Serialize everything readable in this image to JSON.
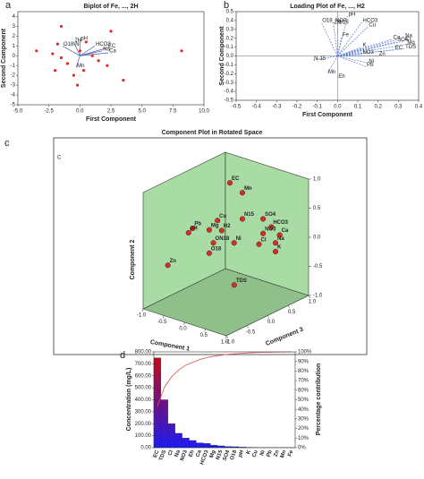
{
  "chart_data": [
    {
      "type": "biplot",
      "panel": "a",
      "title": "Biplot of Fe, ..., 2H",
      "xlabel": "First Component",
      "ylabel": "Second Component",
      "xlim": [
        -5,
        10
      ],
      "ylim": [
        -5,
        4.5
      ],
      "xticks": [
        {
          "value": -5,
          "label": "-5.0"
        },
        {
          "value": -2.5,
          "label": "-2.5"
        },
        {
          "value": 0,
          "label": "0.0"
        },
        {
          "value": 2.5,
          "label": "2.5"
        },
        {
          "value": 5,
          "label": "5.0"
        },
        {
          "value": 7.5,
          "label": "7.5"
        },
        {
          "value": 10,
          "label": "10.0"
        }
      ],
      "yticks": [
        -5,
        -4,
        -3,
        -2,
        -1,
        0,
        1,
        2,
        3,
        4
      ],
      "color": "#e8262a",
      "vector_color": "#4a5fb0",
      "x": [
        -3.5,
        -2.2,
        -1.8,
        -1.5,
        -1,
        -0.5,
        -0.2,
        0.3,
        0.5,
        1,
        1.5,
        2.2,
        2.5,
        3.5,
        8.2,
        -1.5,
        0,
        -2
      ],
      "y": [
        0.5,
        0.2,
        1.2,
        -0.2,
        -0.8,
        -2,
        -3,
        -1.5,
        1.4,
        0,
        -0.5,
        -1,
        2.5,
        -2.5,
        0.5,
        3,
        0.5,
        -1.5
      ],
      "vectors": [
        {
          "label": "EC",
          "x": 2.2,
          "y": 0.8
        },
        {
          "label": "Ca",
          "x": 2.3,
          "y": 0.3
        },
        {
          "label": "Na",
          "x": 1.8,
          "y": 0.5
        },
        {
          "label": "HCO3",
          "x": 1.2,
          "y": 1.0
        },
        {
          "label": "pH",
          "x": 0,
          "y": 1.6
        },
        {
          "label": "2H",
          "x": -0.5,
          "y": 1.4
        },
        {
          "label": "O18-N",
          "x": -1.4,
          "y": 1.0
        },
        {
          "label": "Mn",
          "x": -0.3,
          "y": -1.2
        }
      ]
    },
    {
      "type": "loading",
      "panel": "b",
      "title": "Loading Plot of Fe, ..., H2",
      "xlabel": "First Component",
      "ylabel": "Second Component",
      "xlim": [
        -0.5,
        0.4
      ],
      "ylim": [
        -0.5,
        0.5
      ],
      "xticks": [
        -0.5,
        -0.4,
        -0.3,
        -0.2,
        -0.1,
        {
          "value": 0,
          "label": "0.0"
        },
        0.1,
        0.2,
        0.3,
        0.4
      ],
      "yticks": [
        -0.5,
        -0.4,
        -0.3,
        -0.2,
        -0.1,
        {
          "value": 0,
          "label": "0.0"
        },
        0.1,
        0.2,
        0.3,
        0.4,
        0.5
      ],
      "vector_color": "#5b7fd6",
      "vectors": [
        {
          "label": "O18_NO3",
          "x": -0.08,
          "y": 0.38
        },
        {
          "label": "2H",
          "x": -0.02,
          "y": 0.36
        },
        {
          "label": "O18",
          "x": 0.0,
          "y": 0.36
        },
        {
          "label": "pH",
          "x": 0.05,
          "y": 0.45
        },
        {
          "label": "HCO3",
          "x": 0.12,
          "y": 0.38
        },
        {
          "label": "Cu",
          "x": 0.15,
          "y": 0.33
        },
        {
          "label": "Fe",
          "x": 0.02,
          "y": 0.22
        },
        {
          "label": "K",
          "x": 0.12,
          "y": 0.1
        },
        {
          "label": "Ca",
          "x": 0.27,
          "y": 0.19
        },
        {
          "label": "SO4",
          "x": 0.29,
          "y": 0.16
        },
        {
          "label": "Cl",
          "x": 0.33,
          "y": 0.17
        },
        {
          "label": "Na",
          "x": 0.33,
          "y": 0.21
        },
        {
          "label": "Mg",
          "x": 0.34,
          "y": 0.13
        },
        {
          "label": "EC",
          "x": 0.28,
          "y": 0.07
        },
        {
          "label": "TDS",
          "x": 0.33,
          "y": 0.08
        },
        {
          "label": "NO3",
          "x": 0.12,
          "y": 0.02
        },
        {
          "label": "Zn",
          "x": 0.2,
          "y": 0.0
        },
        {
          "label": "Ni",
          "x": 0.15,
          "y": -0.08
        },
        {
          "label": "Pb",
          "x": 0.14,
          "y": -0.12
        },
        {
          "label": "N-15",
          "x": -0.12,
          "y": -0.05
        },
        {
          "label": "Mn",
          "x": -0.05,
          "y": -0.2
        },
        {
          "label": "Eh",
          "x": 0.0,
          "y": -0.25
        }
      ]
    },
    {
      "type": "scatter3d",
      "panel": "c",
      "inset_label": "C",
      "title": "Component Plot in Rotated Space",
      "xlabel": "Component 1",
      "ylabel": "Component 2",
      "zlabel": "Component 3",
      "lim": [
        -1,
        1
      ],
      "ticks": [
        {
          "value": -1,
          "label": "-1.0"
        },
        {
          "value": -0.5,
          "label": "-0.5"
        },
        {
          "value": 0,
          "label": "0.0"
        },
        {
          "value": 0.5,
          "label": "0.5"
        },
        {
          "value": 1,
          "label": "1.0"
        }
      ],
      "color": "#d2312a",
      "wall_color": "#a9dca4",
      "floor_color": "#8fc08a",
      "labels": [
        "EC",
        "Mn",
        "N15",
        "SO4",
        "HCO3",
        "Ca",
        "NO3",
        "Cl",
        "Na",
        "K",
        "Cu",
        "Mg",
        "Pb",
        "H2",
        "ON18",
        "Ni",
        "pH",
        "O18",
        "Zn",
        "TDS"
      ],
      "component1": [
        -0.2,
        0.1,
        0.1,
        0.4,
        0.5,
        0.6,
        0.4,
        0.4,
        0.6,
        0.6,
        -0.3,
        -0.4,
        -0.6,
        -0.2,
        -0.3,
        0.0,
        -0.7,
        -0.4,
        -0.9,
        0.3
      ],
      "component2": [
        0.9,
        0.8,
        0.35,
        0.35,
        0.2,
        0.05,
        0.1,
        -0.05,
        -0.05,
        -0.2,
        0.3,
        0.15,
        0.2,
        0.15,
        -0.05,
        -0.05,
        0.1,
        -0.25,
        -0.4,
        -0.6
      ],
      "component3": [
        0.3,
        0.3,
        0.3,
        0.5,
        0.6,
        0.7,
        0.5,
        0.4,
        0.6,
        0.6,
        0.1,
        0.0,
        -0.2,
        0.1,
        0.0,
        0.2,
        -0.2,
        0.0,
        -0.5,
        -0.1
      ]
    },
    {
      "type": "pareto",
      "panel": "d",
      "ylabel": "Concentration (mg/L)",
      "y2label": "Percentage contribution",
      "categories": [
        "EC",
        "TDS",
        "Cl",
        "Na",
        "NO3",
        "Eh",
        "Ca",
        "HCO3",
        "Mg",
        "N15",
        "SO4",
        "O18",
        "pH",
        "K",
        "Cu",
        "Ni",
        "Pb",
        "Zn",
        "Mn",
        "Fe"
      ],
      "series": [
        {
          "name": "Concentration",
          "color_top": "#cc0a0a",
          "color_bottom": "#1c1cf0",
          "values": [
            750,
            400,
            200,
            120,
            80,
            60,
            40,
            35,
            20,
            15,
            10,
            8,
            5,
            3,
            1,
            1,
            1,
            1,
            1,
            1
          ]
        },
        {
          "name": "Percentage contribution",
          "axis": "y2",
          "color": "#e05050",
          "values": [
            43,
            63,
            74,
            81,
            86,
            89,
            92,
            94,
            95.5,
            96.5,
            97.5,
            98,
            98.5,
            99,
            99.3,
            99.5,
            99.7,
            99.8,
            99.9,
            100
          ]
        }
      ],
      "ylim": [
        0,
        800
      ],
      "yticks": [
        {
          "value": 0,
          "label": "0.00"
        },
        {
          "value": 100,
          "label": "100.00"
        },
        {
          "value": 200,
          "label": "200.00"
        },
        {
          "value": 300,
          "label": "300.00"
        },
        {
          "value": 400,
          "label": "400.00"
        },
        {
          "value": 500,
          "label": "500.00"
        },
        {
          "value": 600,
          "label": "600.00"
        },
        {
          "value": 700,
          "label": "700.00"
        },
        {
          "value": 800,
          "label": "800.00"
        }
      ],
      "y2lim": [
        0,
        100
      ],
      "y2ticks": [
        {
          "value": 0,
          "label": "0%"
        },
        {
          "value": 10,
          "label": "10%"
        },
        {
          "value": 20,
          "label": "20%"
        },
        {
          "value": 30,
          "label": "30%"
        },
        {
          "value": 40,
          "label": "40%"
        },
        {
          "value": 50,
          "label": "50%"
        },
        {
          "value": 60,
          "label": "60%"
        },
        {
          "value": 70,
          "label": "70%"
        },
        {
          "value": 80,
          "label": "80%"
        },
        {
          "value": 90,
          "label": "90%"
        },
        {
          "value": 100,
          "label": "100%"
        }
      ]
    }
  ]
}
